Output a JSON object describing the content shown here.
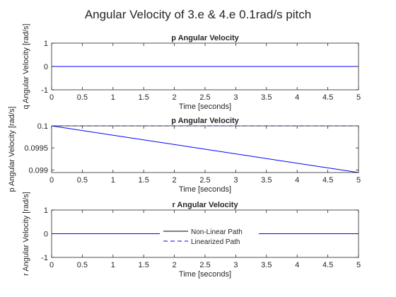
{
  "figure": {
    "title": "Angular Velocity of 3.e & 4.e 0.1rad/s pitch"
  },
  "chart_data": [
    {
      "type": "line",
      "title": "p Angular Velocity",
      "xlabel": "Time [seconds]",
      "ylabel": "q Angular Velocity [rad/s]",
      "xlim": [
        0,
        5
      ],
      "ylim": [
        -1,
        1
      ],
      "xticks": [
        0,
        0.5,
        1,
        1.5,
        2,
        2.5,
        3,
        3.5,
        4,
        4.5,
        5
      ],
      "yticks": [
        -1,
        0,
        1
      ],
      "series": [
        {
          "name": "Non-Linear Path",
          "color": "#000000",
          "dash": "solid",
          "x": [
            0,
            5
          ],
          "y": [
            0,
            0
          ]
        },
        {
          "name": "Linearized Path",
          "color": "#0000ff",
          "dash": "solid",
          "x": [
            0,
            5
          ],
          "y": [
            0,
            0
          ]
        }
      ]
    },
    {
      "type": "line",
      "title": "p Angular Velocity",
      "xlabel": "Time [seconds]",
      "ylabel": "p Angular Velocity [rad/s]",
      "xlim": [
        0,
        5
      ],
      "ylim": [
        0.09894,
        0.1
      ],
      "xticks": [
        0,
        0.5,
        1,
        1.5,
        2,
        2.5,
        3,
        3.5,
        4,
        4.5,
        5
      ],
      "yticks": [
        0.099,
        0.0995,
        0.1
      ],
      "series": [
        {
          "name": "Non-Linear Path",
          "color": "#0000ff",
          "dash": "solid",
          "x": [
            0,
            5
          ],
          "y": [
            0.1,
            0.09894
          ]
        },
        {
          "name": "Linearized Path",
          "color": "#0000ff",
          "dash": "dashed",
          "x": [
            0,
            5
          ],
          "y": [
            0.1,
            0.1
          ]
        }
      ]
    },
    {
      "type": "line",
      "title": "r Angular Velocity",
      "xlabel": "Time [seconds]",
      "ylabel": "r Angular Velocity [rad/s]",
      "xlim": [
        0,
        5
      ],
      "ylim": [
        -1,
        1
      ],
      "xticks": [
        0,
        0.5,
        1,
        1.5,
        2,
        2.5,
        3,
        3.5,
        4,
        4.5,
        5
      ],
      "yticks": [
        -1,
        0,
        1
      ],
      "legend": {
        "placement": "center",
        "entries": [
          {
            "label": "Non-Linear Path",
            "color": "#000000",
            "dash": "solid"
          },
          {
            "label": "Linearized Path",
            "color": "#0000ff",
            "dash": "dashed"
          }
        ]
      },
      "series": [
        {
          "name": "Non-Linear Path",
          "color": "#0000ff",
          "dash": "solid",
          "x": [
            0,
            5
          ],
          "y": [
            0,
            0
          ]
        },
        {
          "name": "Linearized Path",
          "color": "#0000ff",
          "dash": "dashed",
          "x": [
            0,
            5
          ],
          "y": [
            0,
            0
          ]
        }
      ]
    }
  ]
}
